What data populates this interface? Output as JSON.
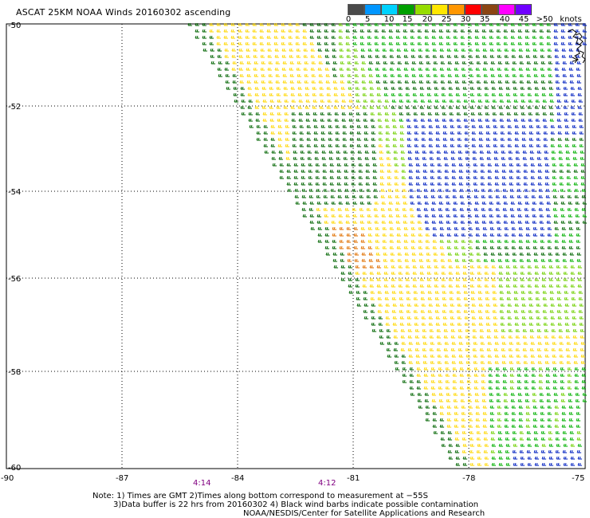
{
  "title": "ASCAT 25KM NOAA Winds 20160302 ascending",
  "legend": {
    "units": "knots",
    "bins": [
      {
        "label": "0",
        "color": "#4a4a4a"
      },
      {
        "label": "5",
        "color": "#0096ff"
      },
      {
        "label": "10",
        "color": "#00d2ff"
      },
      {
        "label": "15",
        "color": "#00a000"
      },
      {
        "label": "20",
        "color": "#96dc00"
      },
      {
        "label": "25",
        "color": "#ffe600"
      },
      {
        "label": "30",
        "color": "#ff9600"
      },
      {
        "label": "35",
        "color": "#ff0000"
      },
      {
        "label": "40",
        "color": "#8b4513"
      },
      {
        "label": "45",
        "color": "#ff00ff"
      },
      {
        "label": ">50",
        "color": "#7000ff"
      }
    ]
  },
  "axes": {
    "lat_labels": [
      "-50",
      "-52",
      "-54",
      "-56",
      "-58",
      "-60"
    ],
    "lon_labels": [
      "-90",
      "-87",
      "-84",
      "-81",
      "-78",
      "-75"
    ]
  },
  "times": [
    "4:14",
    "4:12"
  ],
  "notes": [
    "Note: 1) Times are GMT 2)Times along bottom correspond to measurement at −55S",
    "3)Data buffer is 22 hrs from 20160302 4) Black wind barbs indicate possible contamination",
    "NOAA/NESDIS/Center for Satellite Applications and Research"
  ],
  "colors": {
    "barb_blue": "#0020c0",
    "barb_dark_green": "#006400",
    "barb_green": "#00b000",
    "barb_light_green": "#70d000",
    "barb_yellow": "#ffd700",
    "barb_orange": "#e07000",
    "coast": "#000000"
  }
}
